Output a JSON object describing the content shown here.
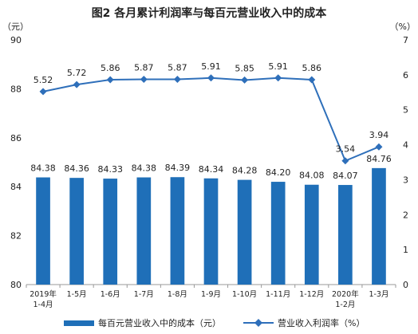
{
  "chart_data": {
    "type": "bar",
    "title": "图2  各月累计利润率与每百元营业收入中的成本",
    "left_unit": "（元）",
    "right_unit": "（%）",
    "y_left_lim": [
      80,
      90
    ],
    "y_left_ticks": [
      "80",
      "82",
      "84",
      "86",
      "88",
      "90"
    ],
    "y_right_lim": [
      0,
      7
    ],
    "y_right_ticks": [
      "0",
      "1",
      "2",
      "3",
      "4",
      "5",
      "6",
      "7"
    ],
    "categories": [
      [
        "2019年",
        "1-4月"
      ],
      [
        "1-5月"
      ],
      [
        "1-6月"
      ],
      [
        "1-7月"
      ],
      [
        "1-8月"
      ],
      [
        "1-9月"
      ],
      [
        "1-10月"
      ],
      [
        "1-11月"
      ],
      [
        "1-12月"
      ],
      [
        "2020年",
        "1-2月"
      ],
      [
        "1-3月"
      ]
    ],
    "series": [
      {
        "name": "每百元营业收入中的成本（元）",
        "type": "bar",
        "axis": "left",
        "color": "#1f6fb8",
        "values": [
          84.38,
          84.36,
          84.33,
          84.38,
          84.39,
          84.34,
          84.28,
          84.2,
          84.08,
          84.07,
          84.76
        ],
        "labels": [
          "84.38",
          "84.36",
          "84.33",
          "84.38",
          "84.39",
          "84.34",
          "84.28",
          "84.20",
          "84.08",
          "84.07",
          "84.76"
        ]
      },
      {
        "name": "营业收入利润率（%）",
        "type": "line",
        "axis": "right",
        "color": "#2e6fba",
        "values": [
          5.52,
          5.72,
          5.86,
          5.87,
          5.87,
          5.91,
          5.85,
          5.91,
          5.86,
          3.54,
          3.94
        ],
        "labels": [
          "5.52",
          "5.72",
          "5.86",
          "5.87",
          "5.87",
          "5.91",
          "5.85",
          "5.91",
          "5.86",
          "3.54",
          "3.94"
        ]
      }
    ],
    "grid": false,
    "legend_position": "bottom"
  }
}
